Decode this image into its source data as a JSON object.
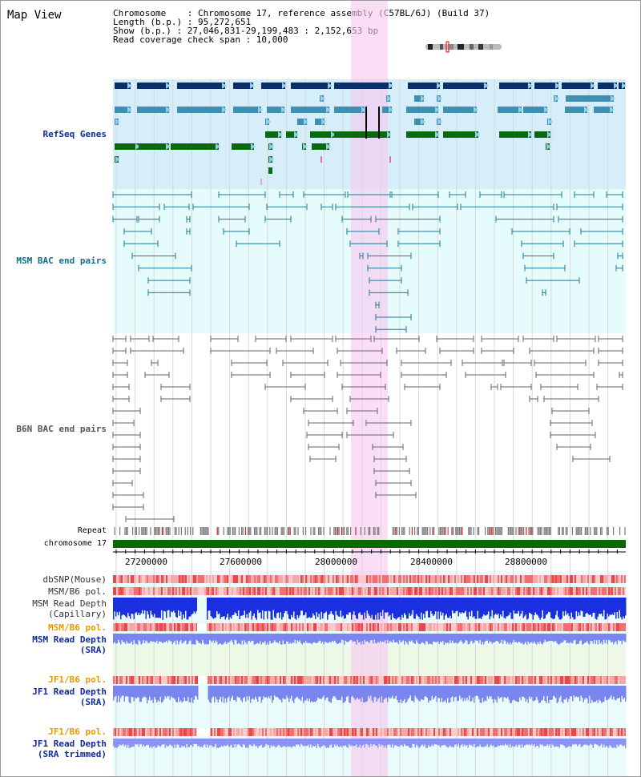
{
  "title": "Map View",
  "info": {
    "line1": "Chromosome    : Chromosome 17, reference assembly (C57BL/6J) (Build 37)",
    "line2": "Length (b.p.) : 95,272,651",
    "line3": "Show (b.p.) : 27,046,831-29,199,483 : 2,152,653 bp",
    "line4": "Read coverage check span : 10,000"
  },
  "tracks": {
    "refseq": "RefSeq Genes",
    "msm_bac": "MSM BAC end pairs",
    "b6n_bac": "B6N BAC end pairs",
    "repeat": "Repeat",
    "chromosome": "chromosome 17",
    "dbsnp": "dbSNP(Mouse)",
    "msm_b6_pol1": "MSM/B6 pol.",
    "msm_read_depth_cap_1": "MSM Read Depth",
    "msm_read_depth_cap_2": "(Capillary)",
    "msm_b6_pol2": "MSM/B6 pol.",
    "msm_read_depth_sra_1": "MSM Read Depth",
    "msm_read_depth_sra_2": "(SRA)",
    "jf1_b6_pol1": "JF1/B6 pol.",
    "jf1_read_depth_sra_1": "JF1 Read Depth",
    "jf1_read_depth_sra_2": "(SRA)",
    "jf1_b6_pol2": "JF1/B6 pol.",
    "jf1_read_depth_trim_1": "JF1 Read Depth",
    "jf1_read_depth_trim_2": "(SRA trimmed)"
  },
  "axis_ticks": [
    "27200000",
    "27600000",
    "28000000",
    "28400000",
    "28800000"
  ],
  "colors": {
    "refseq_bg": "#d6eefa",
    "msm_bg": "#e6fbfb",
    "gene_dark": "#0a2f6b",
    "gene_mid": "#3f8fb3",
    "gene_green": "#0a6a10",
    "highlight": "#f7c8f0",
    "chrom_bar": "#0a6a00",
    "depth_blue": "#1a2fe0",
    "depth_light": "#7a86f0"
  }
}
